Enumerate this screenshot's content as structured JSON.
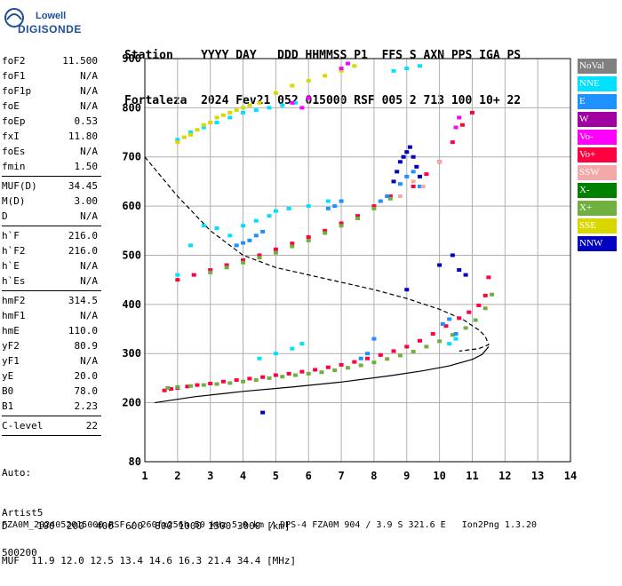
{
  "logo": {
    "line1": "Lowell",
    "line2": "DIGISONDE"
  },
  "header": {
    "line1": "Station    YYYY DAY   DDD HHMMSS P1  FFS S AXN PPS IGA PS",
    "line2": "Fortaleza  2024 Fev21 052 015000 RSF 005 2 713 100 10+ 22"
  },
  "params_group1": [
    {
      "label": "foF2",
      "value": "11.500"
    },
    {
      "label": "foF1",
      "value": "N/A"
    },
    {
      "label": "foF1p",
      "value": "N/A"
    },
    {
      "label": "foE",
      "value": "N/A"
    },
    {
      "label": "foEp",
      "value": "0.53"
    },
    {
      "label": "fxI",
      "value": "11.80"
    },
    {
      "label": "foEs",
      "value": "N/A"
    },
    {
      "label": "fmin",
      "value": "1.50"
    }
  ],
  "params_group2": [
    {
      "label": "MUF(D)",
      "value": "34.45"
    },
    {
      "label": "M(D)",
      "value": "3.00"
    },
    {
      "label": "D",
      "value": "N/A"
    }
  ],
  "params_group3": [
    {
      "label": "h`F",
      "value": "216.0"
    },
    {
      "label": "h`F2",
      "value": "216.0"
    },
    {
      "label": "h`E",
      "value": "N/A"
    },
    {
      "label": "h`Es",
      "value": "N/A"
    }
  ],
  "params_group4": [
    {
      "label": "hmF2",
      "value": "314.5"
    },
    {
      "label": "hmF1",
      "value": "N/A"
    },
    {
      "label": "hmE",
      "value": "110.0"
    },
    {
      "label": "yF2",
      "value": "80.9"
    },
    {
      "label": "yF1",
      "value": "N/A"
    },
    {
      "label": "yE",
      "value": "20.0"
    },
    {
      "label": "B0",
      "value": "78.0"
    },
    {
      "label": "B1",
      "value": "2.23"
    }
  ],
  "params_group5": [
    {
      "label": "C-level",
      "value": "22"
    }
  ],
  "scaling": {
    "line1": "Auto:",
    "line2": "Artist5",
    "line3": "500200"
  },
  "legend": [
    {
      "label": "NoVal",
      "color": "#808080"
    },
    {
      "label": "NNE",
      "color": "#00e0ff"
    },
    {
      "label": "E",
      "color": "#1e90ff"
    },
    {
      "label": "W",
      "color": "#a000a0"
    },
    {
      "label": "Vo-",
      "color": "#ff00ff"
    },
    {
      "label": "Vo+",
      "color": "#ff0040"
    },
    {
      "label": "SSW",
      "color": "#f4a8a8"
    },
    {
      "label": "X-",
      "color": "#008000"
    },
    {
      "label": "X+",
      "color": "#70b040"
    },
    {
      "label": "SSE",
      "color": "#d8d800"
    },
    {
      "label": "NNW",
      "color": "#0000c0"
    }
  ],
  "footer": {
    "line1": "D     100  200  400  600  800 1000 1500 3000 [km]",
    "line2": "MUF  11.9 12.0 12.5 13.4 14.6 16.3 21.4 34.4 [MHz]",
    "line3": "FZA0M_2024052015000.RSF / 260fx256h 50 kHz 5.0 km / DPS-4 FZA0M 904 / 3.9 S 321.6 E   Ion2Png 1.3.20"
  },
  "chart_data": {
    "type": "scatter",
    "xlim": [
      1,
      14
    ],
    "ylim": [
      80,
      900
    ],
    "xticks": [
      1,
      2,
      3,
      4,
      5,
      6,
      7,
      8,
      9,
      10,
      11,
      12,
      13,
      14
    ],
    "yticks": [
      80,
      200,
      300,
      400,
      500,
      600,
      700,
      800,
      900
    ],
    "grid": true,
    "series": [
      {
        "name": "Vo+",
        "color": "#ff0040",
        "x": [
          1.6,
          1.8,
          2.0,
          2.3,
          2.6,
          3.0,
          3.4,
          3.8,
          4.2,
          4.6,
          5.0,
          5.4,
          5.8,
          6.2,
          6.6,
          7.0,
          7.4,
          7.8,
          8.2,
          8.6,
          9.0,
          9.4,
          9.8,
          10.2,
          10.6,
          10.9,
          11.2,
          11.4,
          11.5
        ],
        "y": [
          225,
          228,
          230,
          233,
          236,
          239,
          243,
          246,
          249,
          252,
          256,
          259,
          263,
          267,
          272,
          277,
          283,
          290,
          297,
          305,
          314,
          326,
          340,
          356,
          372,
          384,
          398,
          418,
          455
        ]
      },
      {
        "name": "X+",
        "color": "#70b040",
        "x": [
          1.7,
          2.0,
          2.4,
          2.8,
          3.2,
          3.6,
          4.0,
          4.4,
          4.8,
          5.2,
          5.6,
          6.0,
          6.4,
          6.8,
          7.2,
          7.6,
          8.0,
          8.4,
          8.8,
          9.2,
          9.6,
          10.0,
          10.4,
          10.8,
          11.1,
          11.4,
          11.6
        ],
        "y": [
          230,
          232,
          234,
          236,
          238,
          240,
          243,
          246,
          250,
          253,
          256,
          259,
          262,
          266,
          271,
          276,
          282,
          289,
          296,
          304,
          314,
          325,
          338,
          352,
          368,
          392,
          420
        ]
      },
      {
        "name": "Vo+",
        "color": "#ff0040",
        "x": [
          2.0,
          2.5,
          3.0,
          3.5,
          4.0,
          4.5,
          5.0,
          5.5,
          6.0,
          6.5,
          7.0,
          7.5,
          8.0,
          8.5
        ],
        "y": [
          450,
          460,
          470,
          480,
          490,
          500,
          512,
          524,
          537,
          550,
          565,
          580,
          600,
          620
        ]
      },
      {
        "name": "X+",
        "color": "#70b040",
        "x": [
          3.0,
          3.5,
          4.0,
          4.5,
          5.0,
          5.5,
          6.0,
          6.5,
          7.0,
          7.5,
          8.0,
          8.5
        ],
        "y": [
          465,
          475,
          485,
          495,
          505,
          518,
          530,
          545,
          560,
          575,
          595,
          615
        ]
      },
      {
        "name": "Vo+",
        "color": "#ff0040",
        "x": [
          9.2,
          9.6,
          10.0,
          10.4,
          10.7,
          11.0
        ],
        "y": [
          640,
          665,
          690,
          730,
          765,
          790
        ]
      },
      {
        "name": "NNE",
        "color": "#00e0ff",
        "x": [
          2.0,
          2.4,
          2.8,
          3.2,
          3.6,
          4.0,
          4.4,
          4.8,
          5.0,
          5.4,
          6.0,
          6.6,
          2.0,
          2.4,
          2.8,
          3.2,
          3.6,
          4.0,
          4.4,
          4.8,
          5.2,
          5.6,
          8.6,
          9.0,
          9.4,
          4.5,
          5.0,
          5.5,
          5.8,
          10.3,
          10.5
        ],
        "y": [
          460,
          520,
          560,
          555,
          540,
          560,
          570,
          580,
          590,
          595,
          600,
          610,
          735,
          750,
          760,
          770,
          780,
          790,
          795,
          800,
          805,
          810,
          875,
          880,
          885,
          290,
          300,
          310,
          320,
          320,
          330
        ]
      },
      {
        "name": "E",
        "color": "#1e90ff",
        "x": [
          4.0,
          4.2,
          4.4,
          4.6,
          3.8,
          8.2,
          8.4,
          8.8,
          9.0,
          9.2,
          9.4,
          7.6,
          7.8,
          8.0,
          10.1,
          10.3,
          10.5,
          6.6,
          6.8,
          7.0
        ],
        "y": [
          525,
          530,
          540,
          548,
          520,
          610,
          620,
          645,
          660,
          670,
          640,
          290,
          300,
          330,
          360,
          370,
          340,
          595,
          600,
          610
        ]
      },
      {
        "name": "NNW",
        "color": "#0000c0",
        "x": [
          8.6,
          8.7,
          8.8,
          8.9,
          9.0,
          9.1,
          9.2,
          9.3,
          9.4,
          9.0,
          10.0,
          10.4,
          10.6,
          10.8,
          4.6
        ],
        "y": [
          650,
          670,
          690,
          700,
          710,
          720,
          700,
          680,
          660,
          430,
          480,
          500,
          470,
          460,
          180
        ]
      },
      {
        "name": "SSE",
        "color": "#d8d800",
        "x": [
          2.0,
          2.2,
          2.4,
          2.6,
          2.8,
          3.0,
          3.2,
          3.4,
          3.6,
          3.8,
          4.0,
          4.2,
          4.5,
          5.0,
          5.5,
          6.0,
          6.5,
          7.0,
          7.4
        ],
        "y": [
          730,
          740,
          745,
          755,
          765,
          770,
          780,
          785,
          790,
          795,
          800,
          805,
          810,
          830,
          845,
          855,
          865,
          875,
          885
        ]
      },
      {
        "name": "Vo-",
        "color": "#ff00ff",
        "x": [
          10.5,
          10.6,
          5.5,
          5.8,
          6.0,
          7.0,
          7.2
        ],
        "y": [
          760,
          780,
          810,
          800,
          820,
          880,
          890
        ]
      },
      {
        "name": "SSW",
        "color": "#f4a8a8",
        "x": [
          8.8,
          9.2,
          9.5,
          10.0
        ],
        "y": [
          620,
          650,
          640,
          690
        ]
      }
    ],
    "profile_curve": {
      "x": [
        1.3,
        2.5,
        4.0,
        5.5,
        7.0,
        8.5,
        9.5,
        10.3,
        11.0,
        11.3,
        11.5
      ],
      "y": [
        200,
        212,
        223,
        232,
        242,
        255,
        265,
        275,
        288,
        298,
        314
      ]
    },
    "muf_curve": {
      "x": [
        1.0,
        2.0,
        3.0,
        4.0,
        5.0,
        6.0,
        7.0,
        8.0,
        9.0,
        10.0,
        10.7,
        11.2,
        11.4,
        11.5,
        11.2,
        10.6
      ],
      "y": [
        700,
        620,
        550,
        500,
        475,
        460,
        445,
        430,
        412,
        390,
        370,
        348,
        335,
        318,
        310,
        305
      ]
    }
  }
}
